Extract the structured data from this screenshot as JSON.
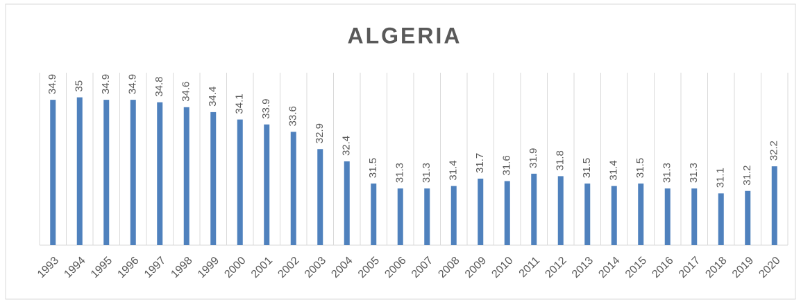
{
  "chart_data": {
    "type": "bar",
    "title": "ALGERIA",
    "categories": [
      "1993",
      "1994",
      "1995",
      "1996",
      "1997",
      "1998",
      "1999",
      "2000",
      "2001",
      "2002",
      "2003",
      "2004",
      "2005",
      "2006",
      "2007",
      "2008",
      "2009",
      "2010",
      "2011",
      "2012",
      "2013",
      "2014",
      "2015",
      "2016",
      "2017",
      "2018",
      "2019",
      "2020"
    ],
    "values": [
      34.9,
      35,
      34.9,
      34.9,
      34.8,
      34.6,
      34.4,
      34.1,
      33.9,
      33.6,
      32.9,
      32.4,
      31.5,
      31.3,
      31.3,
      31.4,
      31.7,
      31.6,
      31.9,
      31.8,
      31.5,
      31.4,
      31.5,
      31.3,
      31.3,
      31.1,
      31.2,
      32.2
    ],
    "color": "#4f81bd",
    "ylim": [
      29,
      36
    ],
    "grid": "x",
    "data_labels": true
  }
}
